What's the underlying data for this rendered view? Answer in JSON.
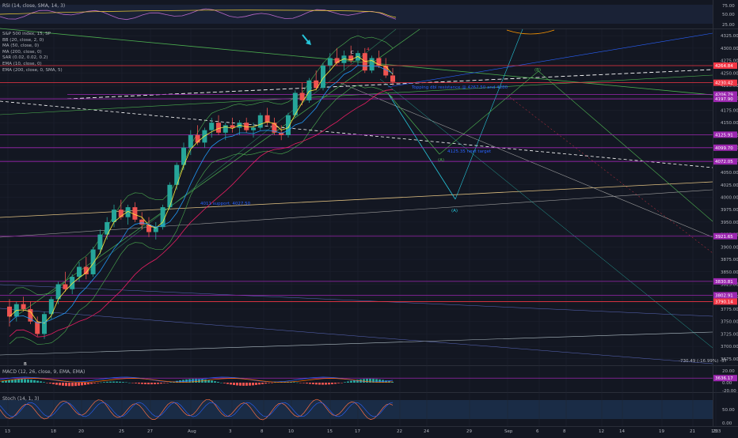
{
  "rsi_pane": {
    "title": "RSI (14, close, SMA, 14, 3)",
    "ticks": [
      75.0,
      50.0,
      25.0
    ]
  },
  "macd_pane": {
    "title": "MACD (12, 26, close, 9, EMA, EMA)",
    "ticks": [
      20.0,
      0.0,
      -20.0
    ]
  },
  "stoch_pane": {
    "title": "Stoch (14, 1, 3)",
    "ticks": [
      50.0,
      0.0
    ]
  },
  "main_legend": [
    "S&P 500 index, 15, SP",
    "BB (20, close, 2, 0)",
    "MA (50, close, 0)",
    "MA (200, close, 0)",
    "SAR (0.02, 0.02, 0.2)",
    "EMA (10, close, 0)",
    "EMA (200, close, 0, SMA, 5)"
  ],
  "chart_data": {
    "type": "candlestick",
    "price_ticks": [
      4325.0,
      4300.0,
      4275.0,
      4250.0,
      4225.0,
      4200.0,
      4175.0,
      4150.0,
      4125.0,
      4100.0,
      4075.0,
      4050.0,
      4025.0,
      4000.0,
      3975.0,
      3950.0,
      3925.0,
      3900.0,
      3875.0,
      3850.0,
      3825.0,
      3800.0,
      3775.0,
      3750.0,
      3725.0,
      3700.0,
      3675.0
    ],
    "ylim": [
      3662,
      4338
    ],
    "x_ticks": [
      "13",
      "18",
      "20",
      "25",
      "27",
      "Aug",
      "3",
      "8",
      "10",
      "15",
      "17",
      "22",
      "24",
      "29",
      "Sep",
      "6",
      "8",
      "12",
      "14",
      "19",
      "21",
      "23"
    ],
    "time_label": "13:3",
    "horizontal_levels": [
      {
        "price": 4264.84,
        "label": "4264.84",
        "color": "#f23645"
      },
      {
        "price": 4206.79,
        "label": "4206.79",
        "color": "#9c27b0"
      },
      {
        "price": 4230.42,
        "label": "4230.42",
        "color": "#f23645"
      },
      {
        "price": 4197.9,
        "label": "4197.90",
        "color": "#9c27b0"
      },
      {
        "price": 4125.91,
        "label": "4125.91",
        "color": "#9c27b0"
      },
      {
        "price": 4099.7,
        "label": "4099.70",
        "color": "#9c27b0"
      },
      {
        "price": 4072.05,
        "label": "4072.05",
        "color": "#9c27b0"
      },
      {
        "price": 3921.65,
        "label": "3921.65",
        "color": "#9c27b0"
      },
      {
        "price": 3830.81,
        "label": "3830.81",
        "color": "#9c27b0"
      },
      {
        "price": 3802.91,
        "label": "3802.91",
        "color": "#9c27b0"
      },
      {
        "price": 3790.14,
        "label": "3790.14",
        "color": "#f23645"
      },
      {
        "price": 3636.17,
        "label": "3636.17",
        "color": "#9c27b0"
      }
    ],
    "annotations": [
      {
        "text": "C",
        "color": "#ffffff"
      },
      {
        "text": "4",
        "color": "#f23645"
      },
      {
        "text": "(B)",
        "color": "#4caf50"
      },
      {
        "text": "(A)",
        "color": "#4caf50"
      },
      {
        "text": "(A)",
        "color": "#26c6da"
      },
      {
        "text": "B",
        "color": "#ffffff"
      },
      {
        "text": "4125.35 next target",
        "color": "#2962ff"
      },
      {
        "text": "Topping dbl resistance @ 4267.50 and 4280",
        "color": "#2962ff"
      },
      {
        "text": "4011 support, 4027.50",
        "color": "#2962ff"
      },
      {
        "text": "-730.49 (-16.99%) -37",
        "color": "#b2b5be"
      }
    ],
    "candles": [
      [
        3780,
        3795,
        3740,
        3760
      ],
      [
        3760,
        3790,
        3750,
        3785
      ],
      [
        3785,
        3800,
        3770,
        3775
      ],
      [
        3775,
        3790,
        3745,
        3750
      ],
      [
        3750,
        3760,
        3720,
        3725
      ],
      [
        3725,
        3770,
        3715,
        3765
      ],
      [
        3765,
        3800,
        3755,
        3795
      ],
      [
        3795,
        3830,
        3785,
        3825
      ],
      [
        3825,
        3850,
        3810,
        3815
      ],
      [
        3815,
        3845,
        3805,
        3840
      ],
      [
        3840,
        3870,
        3830,
        3860
      ],
      [
        3860,
        3880,
        3835,
        3845
      ],
      [
        3845,
        3900,
        3840,
        3895
      ],
      [
        3895,
        3935,
        3885,
        3925
      ],
      [
        3925,
        3960,
        3915,
        3950
      ],
      [
        3950,
        3985,
        3940,
        3975
      ],
      [
        3975,
        3995,
        3955,
        3960
      ],
      [
        3960,
        3985,
        3945,
        3980
      ],
      [
        3980,
        3990,
        3950,
        3955
      ],
      [
        3955,
        3970,
        3935,
        3945
      ],
      [
        3945,
        3960,
        3920,
        3930
      ],
      [
        3930,
        3950,
        3915,
        3940
      ],
      [
        3940,
        3985,
        3935,
        3980
      ],
      [
        3980,
        4030,
        3975,
        4025
      ],
      [
        4025,
        4070,
        4015,
        4065
      ],
      [
        4065,
        4110,
        4055,
        4100
      ],
      [
        4100,
        4135,
        4085,
        4125
      ],
      [
        4125,
        4145,
        4105,
        4110
      ],
      [
        4110,
        4140,
        4100,
        4135
      ],
      [
        4135,
        4160,
        4120,
        4150
      ],
      [
        4150,
        4165,
        4125,
        4130
      ],
      [
        4130,
        4150,
        4115,
        4145
      ],
      [
        4145,
        4160,
        4130,
        4140
      ],
      [
        4140,
        4155,
        4125,
        4150
      ],
      [
        4150,
        4160,
        4130,
        4135
      ],
      [
        4135,
        4150,
        4120,
        4140
      ],
      [
        4140,
        4170,
        4135,
        4165
      ],
      [
        4165,
        4180,
        4145,
        4150
      ],
      [
        4150,
        4160,
        4125,
        4130
      ],
      [
        4130,
        4145,
        4115,
        4125
      ],
      [
        4125,
        4170,
        4120,
        4165
      ],
      [
        4165,
        4215,
        4160,
        4210
      ],
      [
        4210,
        4230,
        4185,
        4195
      ],
      [
        4195,
        4240,
        4190,
        4235
      ],
      [
        4235,
        4255,
        4215,
        4220
      ],
      [
        4220,
        4270,
        4215,
        4265
      ],
      [
        4265,
        4290,
        4255,
        4280
      ],
      [
        4280,
        4300,
        4265,
        4270
      ],
      [
        4270,
        4295,
        4255,
        4285
      ],
      [
        4285,
        4305,
        4270,
        4275
      ],
      [
        4275,
        4295,
        4265,
        4290
      ],
      [
        4290,
        4300,
        4250,
        4255
      ],
      [
        4255,
        4285,
        4250,
        4280
      ],
      [
        4280,
        4295,
        4260,
        4265
      ],
      [
        4265,
        4280,
        4240,
        4245
      ],
      [
        4245,
        4260,
        4225,
        4232
      ]
    ]
  }
}
